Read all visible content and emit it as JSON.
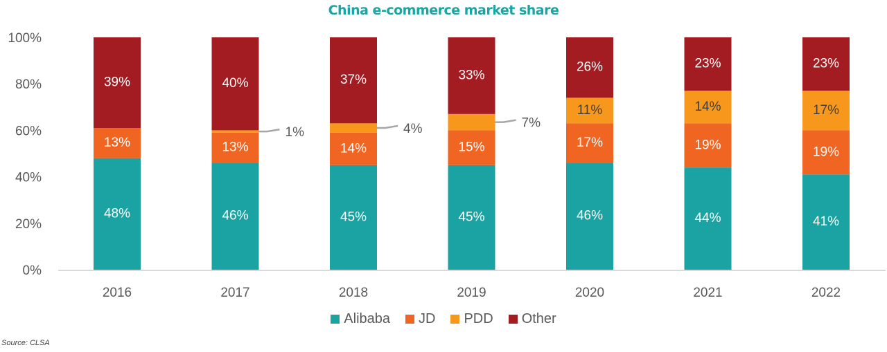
{
  "chart_data": {
    "type": "bar",
    "stacked": true,
    "title": "China e-commerce market share",
    "xlabel": "",
    "ylabel": "",
    "ylim": [
      0,
      100
    ],
    "y_ticks": [
      "0%",
      "20%",
      "40%",
      "60%",
      "80%",
      "100%"
    ],
    "y_tick_values": [
      0,
      20,
      40,
      60,
      80,
      100
    ],
    "grid": false,
    "legend_position": "bottom",
    "categories": [
      "2016",
      "2017",
      "2018",
      "2019",
      "2020",
      "2021",
      "2022"
    ],
    "series": [
      {
        "name": "Alibaba",
        "color": "#1ba3a3",
        "label_color": "#ffffff",
        "values": [
          48,
          46,
          45,
          45,
          46,
          44,
          41
        ]
      },
      {
        "name": "JD",
        "color": "#f16522",
        "label_color": "#ffffff",
        "values": [
          13,
          13,
          14,
          15,
          17,
          19,
          19
        ]
      },
      {
        "name": "PDD",
        "color": "#f7981d",
        "label_color": "#404040",
        "values": [
          0,
          1,
          4,
          7,
          11,
          14,
          17
        ]
      },
      {
        "name": "Other",
        "color": "#a21c21",
        "label_color": "#ffffff",
        "values": [
          39,
          40,
          37,
          33,
          26,
          23,
          23
        ]
      }
    ],
    "callouts": [
      {
        "category": "2017",
        "series": "PDD",
        "label": "1%"
      },
      {
        "category": "2018",
        "series": "PDD",
        "label": "4%"
      },
      {
        "category": "2019",
        "series": "PDD",
        "label": "7%"
      }
    ],
    "source": "Source: CLSA"
  }
}
